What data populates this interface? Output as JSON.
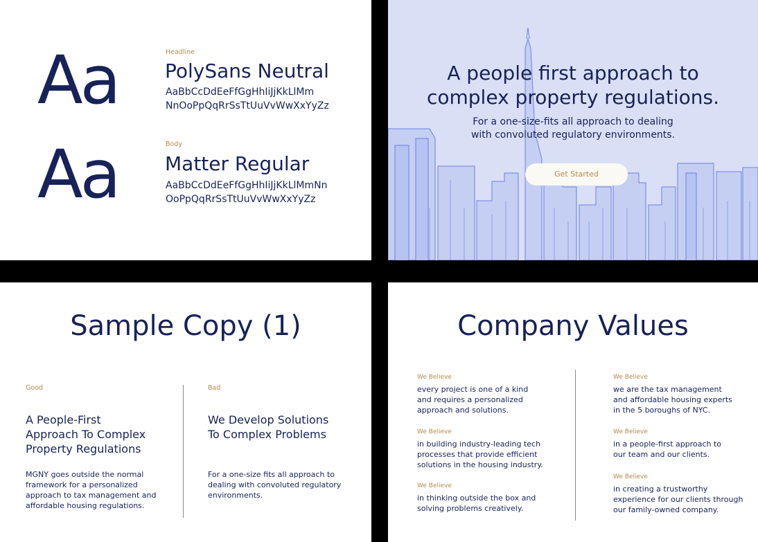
{
  "typography": {
    "aa": "Aa",
    "headline": {
      "tag": "Headline",
      "font_name": "PolySans Neutral",
      "glyph_line1": "AaBbCcDdEeFfGgHhIiJjKkLlMm",
      "glyph_line2": "NnOoPpQqRrSsTtUuVvWwXxYyZz"
    },
    "body": {
      "tag": "Body",
      "font_name": "Matter Regular",
      "glyph_line1": "AaBbCcDdEeFfGgHhIiJjKkLlMmNn",
      "glyph_line2": "OoPpQqRrSsTtUuVvWwXxYyZz"
    }
  },
  "hero": {
    "title_line1": "A people first approach to",
    "title_line2": "complex property regulations.",
    "subtitle_line1": "For a one-size-fits all approach to dealing",
    "subtitle_line2": "with convoluted regulatory environments.",
    "cta_label": "Get Started"
  },
  "sample_copy": {
    "title": "Sample Copy (1)",
    "good": {
      "tag": "Good",
      "head": [
        "A People-First",
        "Approach To Complex",
        "Property Regulations"
      ],
      "body": [
        "MGNY goes outside the normal",
        "framework for a personalized",
        "approach to tax management and",
        "affordable housing regulations."
      ]
    },
    "bad": {
      "tag": "Bad",
      "head": [
        "We Develop Solutions",
        "To Complex Problems"
      ],
      "body": [
        "For a one-size fits all approach to",
        "dealing with convoluted regulatory",
        "environments."
      ]
    }
  },
  "values": {
    "title": "Company Values",
    "left": [
      {
        "tag": "We Believe",
        "lines": [
          "every project is one of a kind",
          "and requires a personalized",
          "approach and solutions."
        ]
      },
      {
        "tag": "We Believe",
        "lines": [
          "in building industry-leading tech",
          "processes that provide efficient",
          "solutions in the housing industry."
        ]
      },
      {
        "tag": "We Believe",
        "lines": [
          "in thinking outside the box and",
          "solving problems creatively."
        ]
      }
    ],
    "right": [
      {
        "tag": "We Believe",
        "lines": [
          "we are the tax management",
          "and affordable housing experts",
          "in the 5 boroughs of NYC."
        ]
      },
      {
        "tag": "We Believe",
        "lines": [
          "in a people-first approach to",
          "our team and our clients."
        ]
      },
      {
        "tag": "We Believe",
        "lines": [
          "in creating a trustworthy",
          "experience for our clients through",
          "our family-owned company."
        ]
      }
    ]
  },
  "colors": {
    "navy": "#172259",
    "gold": "#b58a4c",
    "hero_bg": "#d9dff5",
    "skyline": "#6d80e0"
  }
}
